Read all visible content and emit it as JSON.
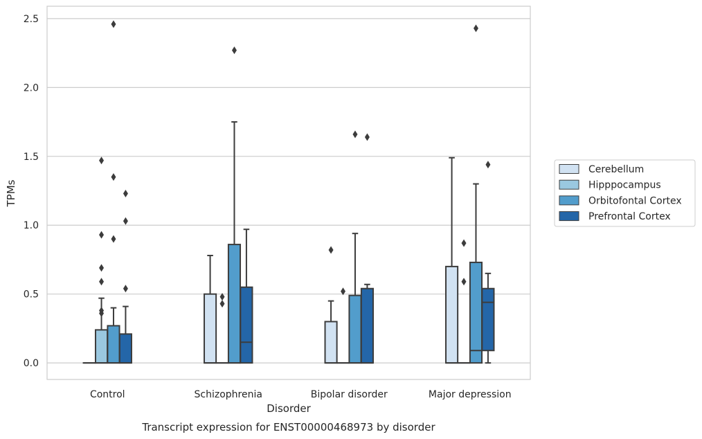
{
  "chart_data": {
    "type": "box",
    "title": "",
    "caption": "Transcript expression for ENST00000468973 by disorder",
    "xlabel": "Disorder",
    "ylabel": "TPMs",
    "ylim": [
      -0.12,
      2.59
    ],
    "yticks": [
      "0.0",
      "0.5",
      "1.0",
      "1.5",
      "2.0",
      "2.5"
    ],
    "ytick_values": [
      0,
      0.5,
      1.0,
      1.5,
      2.0,
      2.5
    ],
    "grid": "horizontal",
    "legend_position": "right",
    "categories": [
      "Control",
      "Schizophrenia",
      "Bipolar disorder",
      "Major depression"
    ],
    "series": [
      {
        "name": "Cerebellum",
        "color": "#d1e2f2",
        "boxes": [
          {
            "whisker_low": 0,
            "q1": 0,
            "median": 0,
            "q3": 0,
            "whisker_high": 0,
            "outliers": []
          },
          {
            "whisker_low": 0,
            "q1": 0,
            "median": 0,
            "q3": 0.5,
            "whisker_high": 0.78,
            "outliers": []
          },
          {
            "whisker_low": 0,
            "q1": 0,
            "median": 0,
            "q3": 0.3,
            "whisker_high": 0.45,
            "outliers": [
              0.82
            ]
          },
          {
            "whisker_low": 0,
            "q1": 0,
            "median": 0,
            "q3": 0.7,
            "whisker_high": 1.49,
            "outliers": []
          }
        ]
      },
      {
        "name": "Hipppocampus",
        "color": "#9ac8e0",
        "boxes": [
          {
            "whisker_low": 0,
            "q1": 0,
            "median": 0,
            "q3": 0.24,
            "whisker_high": 0.47,
            "outliers": [
              0.59,
              0.38,
              0.36,
              0.69,
              0.93,
              1.47
            ]
          },
          {
            "whisker_low": 0,
            "q1": 0,
            "median": 0,
            "q3": 0,
            "whisker_high": 0,
            "outliers": [
              0.48,
              0.43
            ]
          },
          {
            "whisker_low": 0,
            "q1": 0,
            "median": 0,
            "q3": 0,
            "whisker_high": 0,
            "outliers": [
              0.52
            ]
          },
          {
            "whisker_low": 0,
            "q1": 0,
            "median": 0,
            "q3": 0,
            "whisker_high": 0,
            "outliers": [
              0.59,
              0.87
            ]
          }
        ]
      },
      {
        "name": "Orbitofontal Cortex",
        "color": "#529dcc",
        "boxes": [
          {
            "whisker_low": 0,
            "q1": 0,
            "median": 0,
            "q3": 0.27,
            "whisker_high": 0.4,
            "outliers": [
              0.9,
              1.35,
              2.46
            ]
          },
          {
            "whisker_low": 0,
            "q1": 0,
            "median": 0,
            "q3": 0.86,
            "whisker_high": 1.75,
            "outliers": [
              2.27
            ]
          },
          {
            "whisker_low": 0,
            "q1": 0,
            "median": 0,
            "q3": 0.49,
            "whisker_high": 0.94,
            "outliers": [
              1.66
            ]
          },
          {
            "whisker_low": 0,
            "q1": 0,
            "median": 0.09,
            "q3": 0.73,
            "whisker_high": 1.3,
            "outliers": [
              2.43
            ]
          }
        ]
      },
      {
        "name": "Prefrontal Cortex",
        "color": "#2466a8",
        "boxes": [
          {
            "whisker_low": 0,
            "q1": 0,
            "median": 0,
            "q3": 0.21,
            "whisker_high": 0.41,
            "outliers": [
              0.54,
              1.03,
              1.23
            ]
          },
          {
            "whisker_low": 0,
            "q1": 0,
            "median": 0.15,
            "q3": 0.55,
            "whisker_high": 0.97,
            "outliers": []
          },
          {
            "whisker_low": 0,
            "q1": 0,
            "median": 0,
            "q3": 0.54,
            "whisker_high": 0.57,
            "outliers": [
              1.64
            ]
          },
          {
            "whisker_low": 0,
            "q1": 0.09,
            "median": 0.44,
            "q3": 0.54,
            "whisker_high": 0.65,
            "outliers": [
              1.44
            ]
          }
        ]
      }
    ]
  }
}
